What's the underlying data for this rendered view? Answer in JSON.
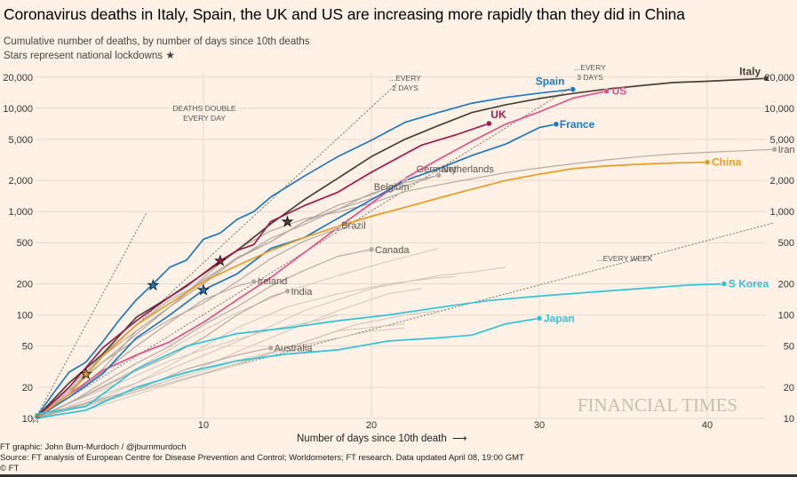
{
  "title": "Coronavirus deaths in Italy, Spain, the UK and US are increasing more rapidly than they did in China",
  "subtitle": {
    "line1": "Cumulative number of deaths, by number of days since 10th deaths",
    "line2": "Stars represent national lockdowns"
  },
  "footer": {
    "credit": "FT graphic: John Burn-Murdoch / @jburnmurdoch",
    "source": "Source: FT analysis of European Centre for Disease Prevention and Control; Worldometers; FT research. Data updated April 08, 19:00 GMT",
    "copyright": "© FT"
  },
  "watermark": "FINANCIAL TIMES",
  "colors": {
    "background": "#fff1e5",
    "Spain": "#1e78c2",
    "US": "#e0508a",
    "UK": "#a3194f",
    "Italy": "#4b4038",
    "France": "#1e78c2",
    "China": "#e79c24",
    "S Korea": "#2ec4d6",
    "Japan": "#2ec4d6",
    "other": "#b5aaa3"
  },
  "chart_data": {
    "type": "line",
    "title": "Coronavirus deaths in Italy, Spain, the UK and US are increasing more rapidly than they did in China",
    "xlabel": "Number of days since 10th death",
    "ylabel": "",
    "yscale": "log",
    "xlim": [
      0,
      44
    ],
    "ylim": [
      10,
      22000
    ],
    "x_ticks": [
      10,
      20,
      30,
      40
    ],
    "y_ticks": [
      10,
      20,
      50,
      100,
      200,
      500,
      1000,
      2000,
      5000,
      10000,
      20000
    ],
    "y_tick_labels": [
      "10",
      "20",
      "50",
      "100",
      "200",
      "500",
      "1,000",
      "2,000",
      "5,000",
      "10,000",
      "20,000"
    ],
    "grid": true,
    "reference_lines": [
      {
        "label": "DEATHS DOUBLE EVERY DAY",
        "label_lines": [
          "DEATHS DOUBLE",
          "EVERY DAY"
        ],
        "doubling_days": 1
      },
      {
        "label": "...EVERY 2 DAYS",
        "label_lines": [
          "...EVERY",
          "2 DAYS"
        ],
        "doubling_days": 2
      },
      {
        "label": "...EVERY 3 DAYS",
        "label_lines": [
          "...EVERY",
          "3 DAYS"
        ],
        "doubling_days": 3
      },
      {
        "label": "...EVERY WEEK",
        "label_lines": [
          "...EVERY WEEK"
        ],
        "doubling_days": 7
      }
    ],
    "series": [
      {
        "name": "Italy",
        "highlight": true,
        "x": [
          0,
          2,
          4,
          6,
          8,
          10,
          12,
          14,
          16,
          18,
          20,
          22,
          24,
          26,
          28,
          30,
          32,
          34,
          36,
          38,
          40,
          42,
          43.5
        ],
        "y": [
          10,
          22,
          42,
          95,
          150,
          250,
          420,
          760,
          1300,
          2100,
          3400,
          5000,
          6800,
          9100,
          10800,
          12400,
          13900,
          15300,
          16500,
          17700,
          18200,
          18900,
          19400
        ],
        "lockdown": {
          "x": 15,
          "y": 800
        }
      },
      {
        "name": "Spain",
        "highlight": true,
        "x": [
          0,
          1,
          2,
          3,
          4,
          5,
          6,
          7,
          8,
          9,
          10,
          11,
          12,
          13,
          14,
          16,
          18,
          20,
          22,
          24,
          26,
          28,
          30,
          32
        ],
        "y": [
          10,
          17,
          28,
          35,
          55,
          90,
          140,
          200,
          290,
          340,
          540,
          620,
          840,
          1000,
          1380,
          2200,
          3400,
          4900,
          7300,
          9100,
          11200,
          12700,
          14000,
          15200
        ],
        "lockdown": {
          "x": 7,
          "y": 195
        }
      },
      {
        "name": "US",
        "highlight": true,
        "x": [
          0,
          2,
          4,
          6,
          8,
          10,
          12,
          14,
          16,
          18,
          20,
          22,
          24,
          26,
          28,
          30,
          32,
          33,
          34
        ],
        "y": [
          10,
          17,
          29,
          41,
          55,
          85,
          140,
          230,
          400,
          700,
          1200,
          2100,
          3200,
          4800,
          7000,
          9200,
          12500,
          13500,
          14600
        ]
      },
      {
        "name": "UK",
        "highlight": true,
        "x": [
          0,
          2,
          4,
          6,
          8,
          9,
          11,
          12,
          13,
          14,
          16,
          18,
          20,
          22,
          23,
          25,
          27
        ],
        "y": [
          10,
          20,
          48,
          88,
          150,
          190,
          335,
          420,
          480,
          800,
          1140,
          1540,
          2400,
          3600,
          4400,
          5500,
          7100
        ],
        "lockdown": {
          "x": 11,
          "y": 335
        }
      },
      {
        "name": "France",
        "highlight": true,
        "x": [
          0,
          2,
          4,
          6,
          8,
          10,
          12,
          14,
          16,
          18,
          20,
          22,
          24,
          26,
          28,
          30,
          31
        ],
        "y": [
          10,
          16,
          27,
          60,
          100,
          175,
          250,
          440,
          560,
          860,
          1300,
          2000,
          2600,
          3500,
          4500,
          6500,
          7000
        ],
        "lockdown": {
          "x": 10,
          "y": 175
        }
      },
      {
        "name": "China",
        "highlight": true,
        "x": [
          0,
          2,
          4,
          6,
          8,
          10,
          12,
          14,
          16,
          18,
          20,
          22,
          24,
          26,
          28,
          30,
          32,
          34,
          36,
          38,
          40
        ],
        "y": [
          10,
          17,
          40,
          80,
          130,
          210,
          300,
          420,
          560,
          720,
          900,
          1100,
          1350,
          1650,
          2000,
          2300,
          2600,
          2760,
          2870,
          2950,
          3000
        ],
        "lockdown": {
          "x": 3,
          "y": 27
        }
      },
      {
        "name": "S Korea",
        "highlight": true,
        "x": [
          0,
          3,
          6,
          9,
          12,
          15,
          18,
          21,
          24,
          27,
          30,
          33,
          36,
          39,
          41
        ],
        "y": [
          11,
          13,
          30,
          50,
          66,
          75,
          88,
          100,
          118,
          138,
          152,
          166,
          180,
          195,
          200
        ]
      },
      {
        "name": "Japan",
        "highlight": true,
        "x": [
          0,
          3,
          6,
          9,
          12,
          15,
          18,
          21,
          24,
          26,
          28,
          30
        ],
        "y": [
          10,
          12,
          20,
          28,
          36,
          42,
          46,
          56,
          60,
          64,
          82,
          93
        ]
      },
      {
        "name": "Iran",
        "highlight": false,
        "x": [
          0,
          2,
          4,
          6,
          8,
          10,
          12,
          14,
          16,
          18,
          20,
          22,
          24,
          26,
          28,
          30,
          32,
          34,
          36,
          38,
          40,
          42,
          44
        ],
        "y": [
          10,
          20,
          40,
          70,
          120,
          230,
          430,
          650,
          850,
          990,
          1200,
          1560,
          1810,
          2080,
          2380,
          2640,
          2900,
          3160,
          3400,
          3600,
          3740,
          3870,
          4000
        ]
      },
      {
        "name": "Germany",
        "highlight": false,
        "x": [
          0,
          2,
          4,
          6,
          8,
          10,
          12,
          14,
          16,
          18,
          20,
          22,
          24
        ],
        "y": [
          10,
          16,
          30,
          70,
          120,
          200,
          350,
          550,
          750,
          1050,
          1500,
          1900,
          2250
        ]
      },
      {
        "name": "Netherlands",
        "highlight": false,
        "x": [
          0,
          2,
          4,
          6,
          8,
          10,
          12,
          14,
          16,
          18,
          20,
          22,
          24
        ],
        "y": [
          10,
          18,
          42,
          80,
          140,
          210,
          360,
          510,
          800,
          1050,
          1340,
          1770,
          2250
        ]
      },
      {
        "name": "Belgium",
        "highlight": false,
        "x": [
          0,
          2,
          4,
          6,
          8,
          10,
          12,
          14,
          16,
          18,
          20,
          22
        ],
        "y": [
          10,
          19,
          35,
          65,
          120,
          220,
          350,
          510,
          800,
          1150,
          1450,
          2000
        ]
      },
      {
        "name": "Brazil",
        "highlight": false,
        "x": [
          0,
          2,
          4,
          6,
          8,
          10,
          12,
          14,
          16,
          18
        ],
        "y": [
          10,
          18,
          35,
          58,
          90,
          130,
          210,
          350,
          520,
          680
        ]
      },
      {
        "name": "Canada",
        "highlight": false,
        "x": [
          0,
          2,
          4,
          6,
          8,
          10,
          12,
          14,
          16,
          18,
          20
        ],
        "y": [
          10,
          14,
          22,
          34,
          50,
          80,
          120,
          190,
          270,
          370,
          430
        ]
      },
      {
        "name": "Ireland",
        "highlight": false,
        "x": [
          0,
          2,
          4,
          6,
          8,
          10,
          12,
          13
        ],
        "y": [
          10,
          16,
          28,
          50,
          85,
          140,
          190,
          210
        ]
      },
      {
        "name": "India",
        "highlight": false,
        "x": [
          0,
          2,
          4,
          6,
          8,
          10,
          12,
          14,
          15
        ],
        "y": [
          10,
          14,
          20,
          29,
          40,
          60,
          100,
          150,
          170
        ]
      },
      {
        "name": "Australia",
        "highlight": false,
        "x": [
          0,
          3,
          6,
          9,
          12,
          14
        ],
        "y": [
          10,
          14,
          19,
          30,
          41,
          48
        ]
      }
    ],
    "labels": {
      "Spain": "Spain",
      "US": "US",
      "UK": "UK",
      "Italy": "Italy",
      "France": "France",
      "China": "China",
      "S Korea": "S Korea",
      "Japan": "Japan",
      "Iran": "Iran",
      "Germany": "Germany",
      "Netherlands": "Netherlands",
      "Belgium": "Belgium",
      "Brazil": "Brazil",
      "Canada": "Canada",
      "Ireland": "Ireland",
      "India": "India",
      "Australia": "Australia"
    }
  }
}
